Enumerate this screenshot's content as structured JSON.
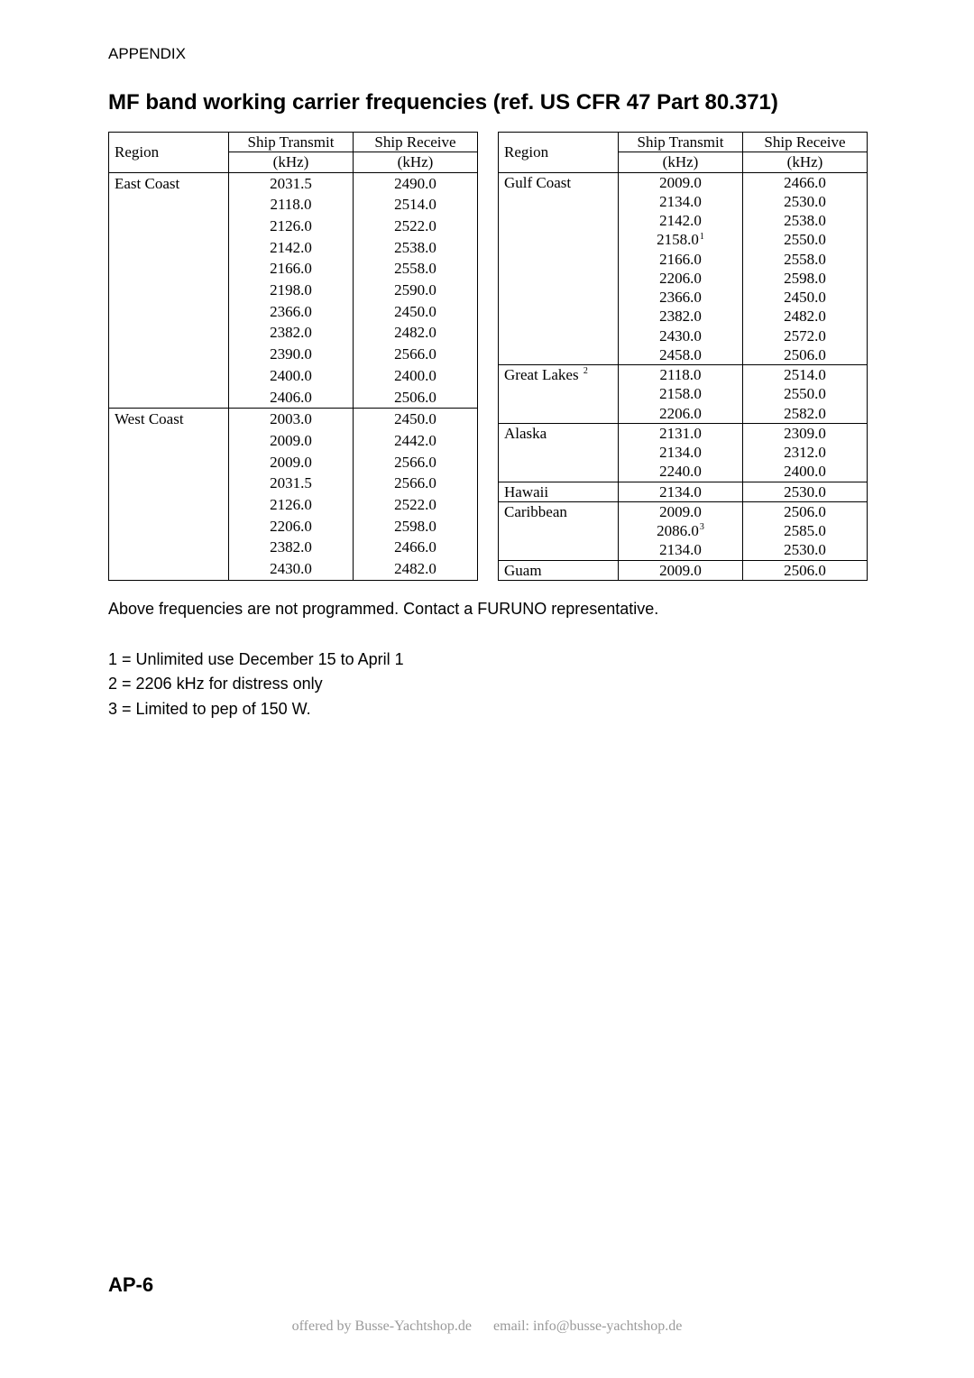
{
  "header": "APPENDIX",
  "title": "MF band working carrier frequencies (ref. US CFR 47 Part 80.371)",
  "columns": {
    "region": "Region",
    "tx_l1": "Ship Transmit",
    "tx_l2": "(kHz)",
    "rx_l1": "Ship Receive",
    "rx_l2": "(kHz)"
  },
  "left_table": [
    {
      "region": "East Coast",
      "top": true,
      "tx": "2031.5",
      "rx": "2490.0"
    },
    {
      "region": "",
      "tx": "2118.0",
      "rx": "2514.0"
    },
    {
      "region": "",
      "tx": "2126.0",
      "rx": "2522.0"
    },
    {
      "region": "",
      "tx": "2142.0",
      "rx": "2538.0"
    },
    {
      "region": "",
      "tx": "2166.0",
      "rx": "2558.0"
    },
    {
      "region": "",
      "tx": "2198.0",
      "rx": "2590.0"
    },
    {
      "region": "",
      "tx": "2366.0",
      "rx": "2450.0"
    },
    {
      "region": "",
      "tx": "2382.0",
      "rx": "2482.0"
    },
    {
      "region": "",
      "tx": "2390.0",
      "rx": "2566.0"
    },
    {
      "region": "",
      "tx": "2400.0",
      "rx": "2400.0"
    },
    {
      "region": "",
      "tx": "2406.0",
      "rx": "2506.0"
    },
    {
      "region": "West Coast",
      "top": true,
      "tx": "2003.0",
      "rx": "2450.0"
    },
    {
      "region": "",
      "tx": "2009.0",
      "rx": "2442.0"
    },
    {
      "region": "",
      "tx": "2009.0",
      "rx": "2566.0"
    },
    {
      "region": "",
      "tx": "2031.5",
      "rx": "2566.0"
    },
    {
      "region": "",
      "tx": "2126.0",
      "rx": "2522.0"
    },
    {
      "region": "",
      "tx": "2206.0",
      "rx": "2598.0"
    },
    {
      "region": "",
      "tx": "2382.0",
      "rx": "2466.0"
    },
    {
      "region": "",
      "tx": "2430.0",
      "rx": "2482.0"
    },
    {
      "region": "",
      "tx": "",
      "rx": ""
    }
  ],
  "right_table": [
    {
      "region": "Gulf Coast",
      "top": true,
      "tx": "2009.0",
      "rx": "2466.0"
    },
    {
      "region": "",
      "tx": "2134.0",
      "rx": "2530.0"
    },
    {
      "region": "",
      "tx": "2142.0",
      "rx": "2538.0"
    },
    {
      "region": "",
      "tx": "2158.0",
      "sup": "1",
      "rx": "2550.0"
    },
    {
      "region": "",
      "tx": "2166.0",
      "rx": "2558.0"
    },
    {
      "region": "",
      "tx": "2206.0",
      "rx": "2598.0"
    },
    {
      "region": "",
      "tx": "2366.0",
      "rx": "2450.0"
    },
    {
      "region": "",
      "tx": "2382.0",
      "rx": "2482.0"
    },
    {
      "region": "",
      "tx": "2430.0",
      "rx": "2572.0"
    },
    {
      "region": "",
      "tx": "2458.0",
      "rx": "2506.0"
    },
    {
      "region": "Great Lakes",
      "rsup": "2",
      "top": true,
      "tx": "2118.0",
      "rx": "2514.0"
    },
    {
      "region": "",
      "tx": "2158.0",
      "rx": "2550.0"
    },
    {
      "region": "",
      "tx": "2206.0",
      "rx": "2582.0"
    },
    {
      "region": "Alaska",
      "top": true,
      "tx": "2131.0",
      "rx": "2309.0"
    },
    {
      "region": "",
      "tx": "2134.0",
      "rx": "2312.0"
    },
    {
      "region": "",
      "tx": "2240.0",
      "rx": "2400.0"
    },
    {
      "region": "Hawaii",
      "top": true,
      "tx": "2134.0",
      "rx": "2530.0"
    },
    {
      "region": "Caribbean",
      "top": true,
      "tx": "2009.0",
      "rx": "2506.0"
    },
    {
      "region": "",
      "tx": "2086.0",
      "sup": "3",
      "rx": "2585.0"
    },
    {
      "region": "",
      "tx": "2134.0",
      "rx": "2530.0"
    },
    {
      "region": "Guam",
      "top": true,
      "tx": "2009.0",
      "rx": "2506.0"
    }
  ],
  "notes": {
    "intro": "Above frequencies are not programmed. Contact a FURUNO representative.",
    "n1": "1 = Unlimited use December 15 to April 1",
    "n2": "2 = 2206 kHz for distress only",
    "n3": "3 = Limited to pep of 150 W."
  },
  "page_num": "AP-6",
  "footer": {
    "left": "offered by Busse-Yachtshop.de",
    "right": "email: info@busse-yachtshop.de"
  }
}
